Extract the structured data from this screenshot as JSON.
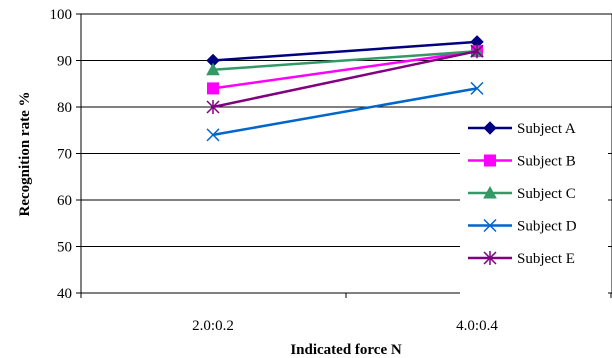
{
  "chart_data": {
    "type": "line",
    "categories": [
      "2.0:0.2",
      "4.0:0.4"
    ],
    "xlabel": "Indicated force N",
    "ylabel": "Recognition rate %",
    "ylim": [
      40,
      100
    ],
    "yticks": [
      "40",
      "50",
      "60",
      "70",
      "80",
      "90",
      "100"
    ],
    "grid": "horizontal",
    "legend_position": "right",
    "series": [
      {
        "name": "Subject A",
        "values": [
          90,
          94
        ],
        "color": "#000080",
        "marker": "diamond"
      },
      {
        "name": "Subject B",
        "values": [
          84,
          92
        ],
        "color": "#ff00ff",
        "marker": "square"
      },
      {
        "name": "Subject C",
        "values": [
          88,
          92
        ],
        "color": "#339966",
        "marker": "triangle"
      },
      {
        "name": "Subject D",
        "values": [
          74,
          84
        ],
        "color": "#0066cc",
        "marker": "x"
      },
      {
        "name": "Subject E",
        "values": [
          80,
          92
        ],
        "color": "#800080",
        "marker": "star"
      }
    ]
  }
}
